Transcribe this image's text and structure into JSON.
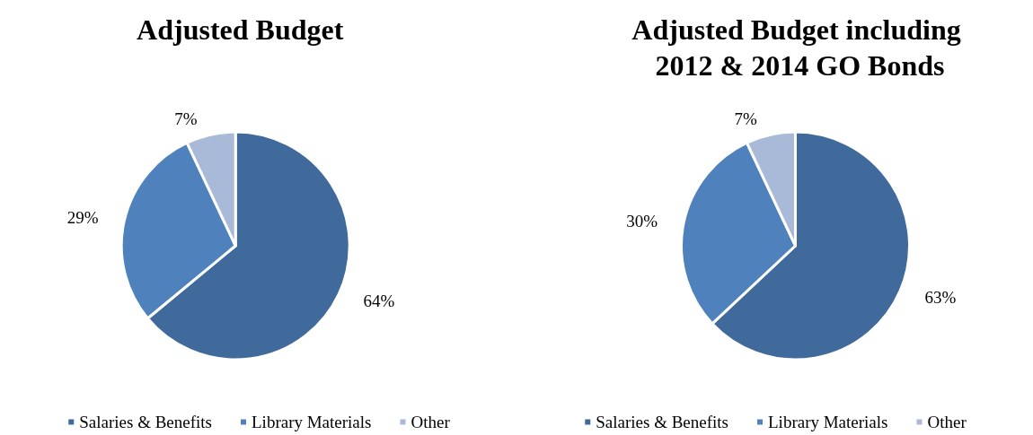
{
  "chart_data": [
    {
      "type": "pie",
      "title": "Adjusted Budget",
      "categories": [
        "Salaries & Benefits",
        "Library Materials",
        "Other"
      ],
      "values": [
        64,
        29,
        7
      ],
      "colors": [
        "#40699c",
        "#4f81bd",
        "#a9bad9"
      ],
      "value_labels": [
        "64%",
        "29%",
        "7%"
      ],
      "legend": "bottom"
    },
    {
      "type": "pie",
      "title": "Adjusted Budget including 2012 & 2014 GO Bonds",
      "categories": [
        "Salaries & Benefits",
        "Library Materials",
        "Other"
      ],
      "values": [
        63,
        30,
        7
      ],
      "colors": [
        "#40699c",
        "#4f81bd",
        "#a9bad9"
      ],
      "value_labels": [
        "63%",
        "30%",
        "7%"
      ],
      "legend": "bottom"
    }
  ]
}
